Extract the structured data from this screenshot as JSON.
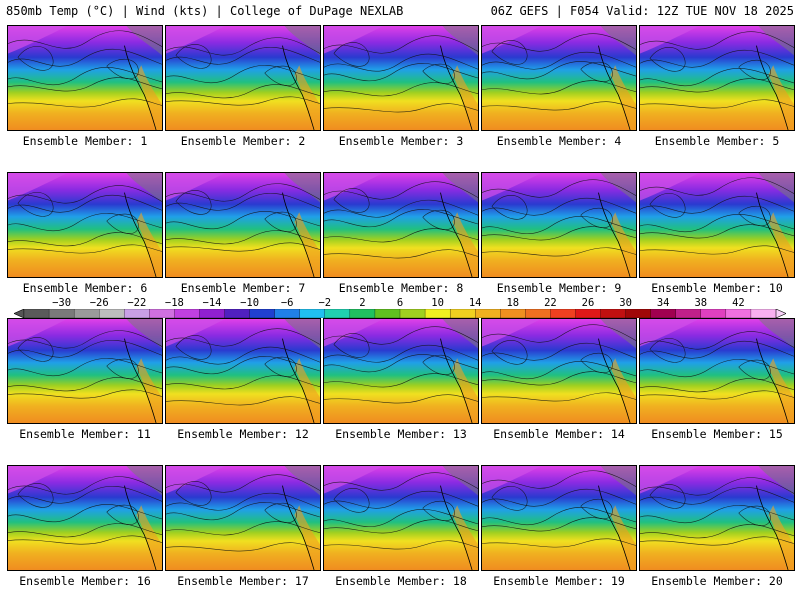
{
  "header": {
    "left_title": "850mb Temp (°C) | Wind (kts) | College of DuPage NEXLAB",
    "right_title": "06Z GEFS | F054 Valid: 12Z TUE NOV 18 2025"
  },
  "members": [
    "Ensemble Member: 1",
    "Ensemble Member: 2",
    "Ensemble Member: 3",
    "Ensemble Member: 4",
    "Ensemble Member: 5",
    "Ensemble Member: 6",
    "Ensemble Member: 7",
    "Ensemble Member: 8",
    "Ensemble Member: 9",
    "Ensemble Member: 10",
    "Ensemble Member: 11",
    "Ensemble Member: 12",
    "Ensemble Member: 13",
    "Ensemble Member: 14",
    "Ensemble Member: 15",
    "Ensemble Member: 16",
    "Ensemble Member: 17",
    "Ensemble Member: 18",
    "Ensemble Member: 19",
    "Ensemble Member: 20"
  ],
  "colorbar": {
    "ticks": [
      "−30",
      "−26",
      "−22",
      "−18",
      "−14",
      "−10",
      "−6",
      "−2",
      "2",
      "6",
      "10",
      "14",
      "18",
      "22",
      "26",
      "30",
      "34",
      "38",
      "42"
    ],
    "colors": [
      "#5a5a5a",
      "#7a7a7a",
      "#9a9a9a",
      "#bdbdbd",
      "#c9a0e6",
      "#d070e0",
      "#c040e0",
      "#9020d0",
      "#5020c0",
      "#2040d0",
      "#2080e8",
      "#20c0f0",
      "#20d0b0",
      "#20c060",
      "#60c020",
      "#a0d020",
      "#f0f020",
      "#f0d020",
      "#f0b020",
      "#f09020",
      "#f07020",
      "#f04020",
      "#e01818",
      "#c01010",
      "#a00808",
      "#a00050",
      "#c0208a",
      "#e040c0",
      "#f070e0",
      "#f8b0f0"
    ]
  }
}
